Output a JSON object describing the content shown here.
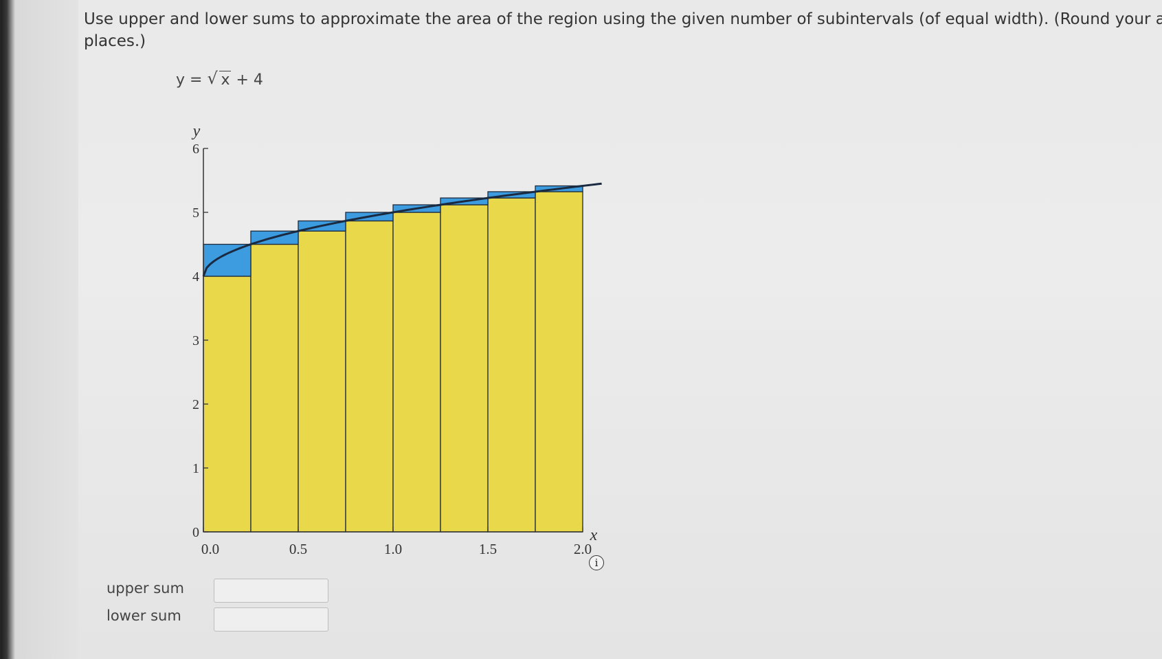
{
  "problem": {
    "line1": "Use upper and lower sums to approximate the area of the region using the given number of subintervals (of equal width). (Round your ans",
    "line2": "places.)"
  },
  "formula": {
    "lhs": "y =",
    "radicand": "x",
    "rest": " + 4"
  },
  "chart_data": {
    "type": "area",
    "function": "y = sqrt(x) + 4",
    "subintervals": 8,
    "xlim": [
      0,
      2
    ],
    "ylim": [
      0,
      6
    ],
    "xlabel": "x",
    "ylabel": "y",
    "x_ticks": [
      "0.0",
      "0.5",
      "1.0",
      "1.5",
      "2.0"
    ],
    "x_tick_values": [
      0,
      0.5,
      1.0,
      1.5,
      2.0
    ],
    "y_ticks": [
      "0",
      "1",
      "2",
      "3",
      "4",
      "5",
      "6"
    ],
    "y_tick_values": [
      0,
      1,
      2,
      3,
      4,
      5,
      6
    ],
    "lower_rect_heights": [
      4.0,
      4.5,
      4.707,
      4.866,
      5.0,
      5.118,
      5.225,
      5.323
    ],
    "upper_rect_heights": [
      4.5,
      4.707,
      4.866,
      5.0,
      5.118,
      5.225,
      5.323,
      5.414
    ],
    "colors": {
      "lower": "#e8d84a",
      "upper": "#3d9be0",
      "curve": "#1a2a40"
    }
  },
  "answers": {
    "upper_label": "upper sum",
    "lower_label": "lower sum",
    "upper_value": "",
    "lower_value": ""
  },
  "info_icon_glyph": "i"
}
